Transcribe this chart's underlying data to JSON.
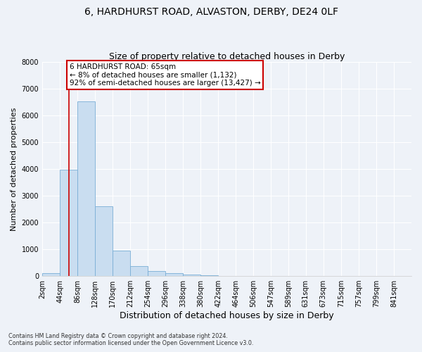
{
  "title1": "6, HARDHURST ROAD, ALVASTON, DERBY, DE24 0LF",
  "title2": "Size of property relative to detached houses in Derby",
  "xlabel": "Distribution of detached houses by size in Derby",
  "ylabel": "Number of detached properties",
  "bin_labels": [
    "2sqm",
    "44sqm",
    "86sqm",
    "128sqm",
    "170sqm",
    "212sqm",
    "254sqm",
    "296sqm",
    "338sqm",
    "380sqm",
    "422sqm",
    "464sqm",
    "506sqm",
    "547sqm",
    "589sqm",
    "631sqm",
    "673sqm",
    "715sqm",
    "757sqm",
    "799sqm",
    "841sqm"
  ],
  "bar_values": [
    100,
    3980,
    6520,
    2600,
    950,
    380,
    180,
    95,
    55,
    25,
    8,
    4,
    2,
    1,
    0,
    0,
    0,
    0,
    0,
    0,
    0
  ],
  "bar_color": "#c9ddf0",
  "bar_edge_color": "#7aaed6",
  "property_label": "6 HARDHURST ROAD: 65sqm",
  "annotation_line1": "← 8% of detached houses are smaller (1,132)",
  "annotation_line2": "92% of semi-detached houses are larger (13,427) →",
  "annotation_box_color": "#ffffff",
  "annotation_box_edge": "#cc0000",
  "vline_color": "#cc0000",
  "vline_x_bin": 1,
  "ylim": [
    0,
    8000
  ],
  "yticks": [
    0,
    1000,
    2000,
    3000,
    4000,
    5000,
    6000,
    7000,
    8000
  ],
  "footer1": "Contains HM Land Registry data © Crown copyright and database right 2024.",
  "footer2": "Contains public sector information licensed under the Open Government Licence v3.0.",
  "bg_color": "#eef2f8",
  "plot_bg_color": "#eef2f8",
  "grid_color": "#ffffff",
  "title1_fontsize": 10,
  "title2_fontsize": 9,
  "xlabel_fontsize": 9,
  "ylabel_fontsize": 8,
  "tick_fontsize": 7,
  "annot_fontsize": 7.5
}
